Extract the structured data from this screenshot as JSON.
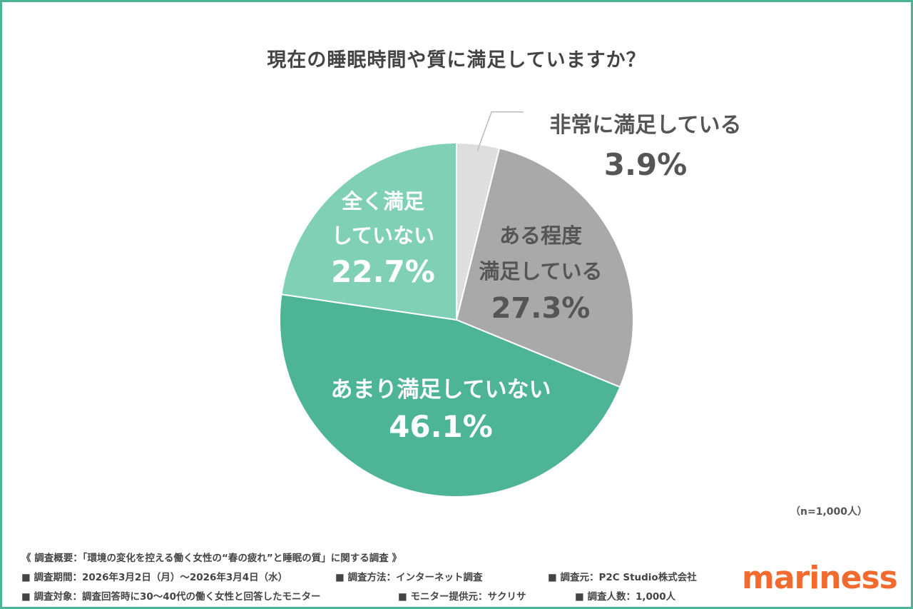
{
  "chart_data": {
    "type": "pie",
    "title": "現在の睡眠時間や質に満足していますか？",
    "slices": [
      {
        "label_lines": [
          "非常に満足している"
        ],
        "value": 3.9,
        "value_label": "3.9%",
        "color": "#dedede"
      },
      {
        "label_lines": [
          "ある程度",
          "満足している"
        ],
        "value": 27.3,
        "value_label": "27.3%",
        "color": "#a9a9a9"
      },
      {
        "label_lines": [
          "あまり満足していない"
        ],
        "value": 46.1,
        "value_label": "46.1%",
        "color": "#4db596"
      },
      {
        "label_lines": [
          "全く満足",
          "していない"
        ],
        "value": 22.7,
        "value_label": "22.7%",
        "color": "#7fd0b4"
      }
    ],
    "start": "12 o'clock",
    "direction": "clockwise",
    "sample_note": "（n=1,000人）"
  },
  "footer": {
    "line1": "《 調査概要：「環境の変化を控える働く女性の“春の疲れ”と睡眠の質」に関する調査 》",
    "items2": [
      "■ 調査期間：2026年3月2日（月）～2026年3月4日（水）",
      "■ 調査方法：インターネット調査",
      "■ 調査元：P2C Studio株式会社"
    ],
    "items3": [
      "■ 調査対象：調査回答時に30～40代の働く女性と回答したモニター",
      "■ モニター提供元：サクリサ",
      "■ 調査人数：1,000人"
    ]
  },
  "brand": "mariness",
  "colors": {
    "border": "#4db596",
    "brand": "#f26a2e",
    "title": "#444444"
  }
}
